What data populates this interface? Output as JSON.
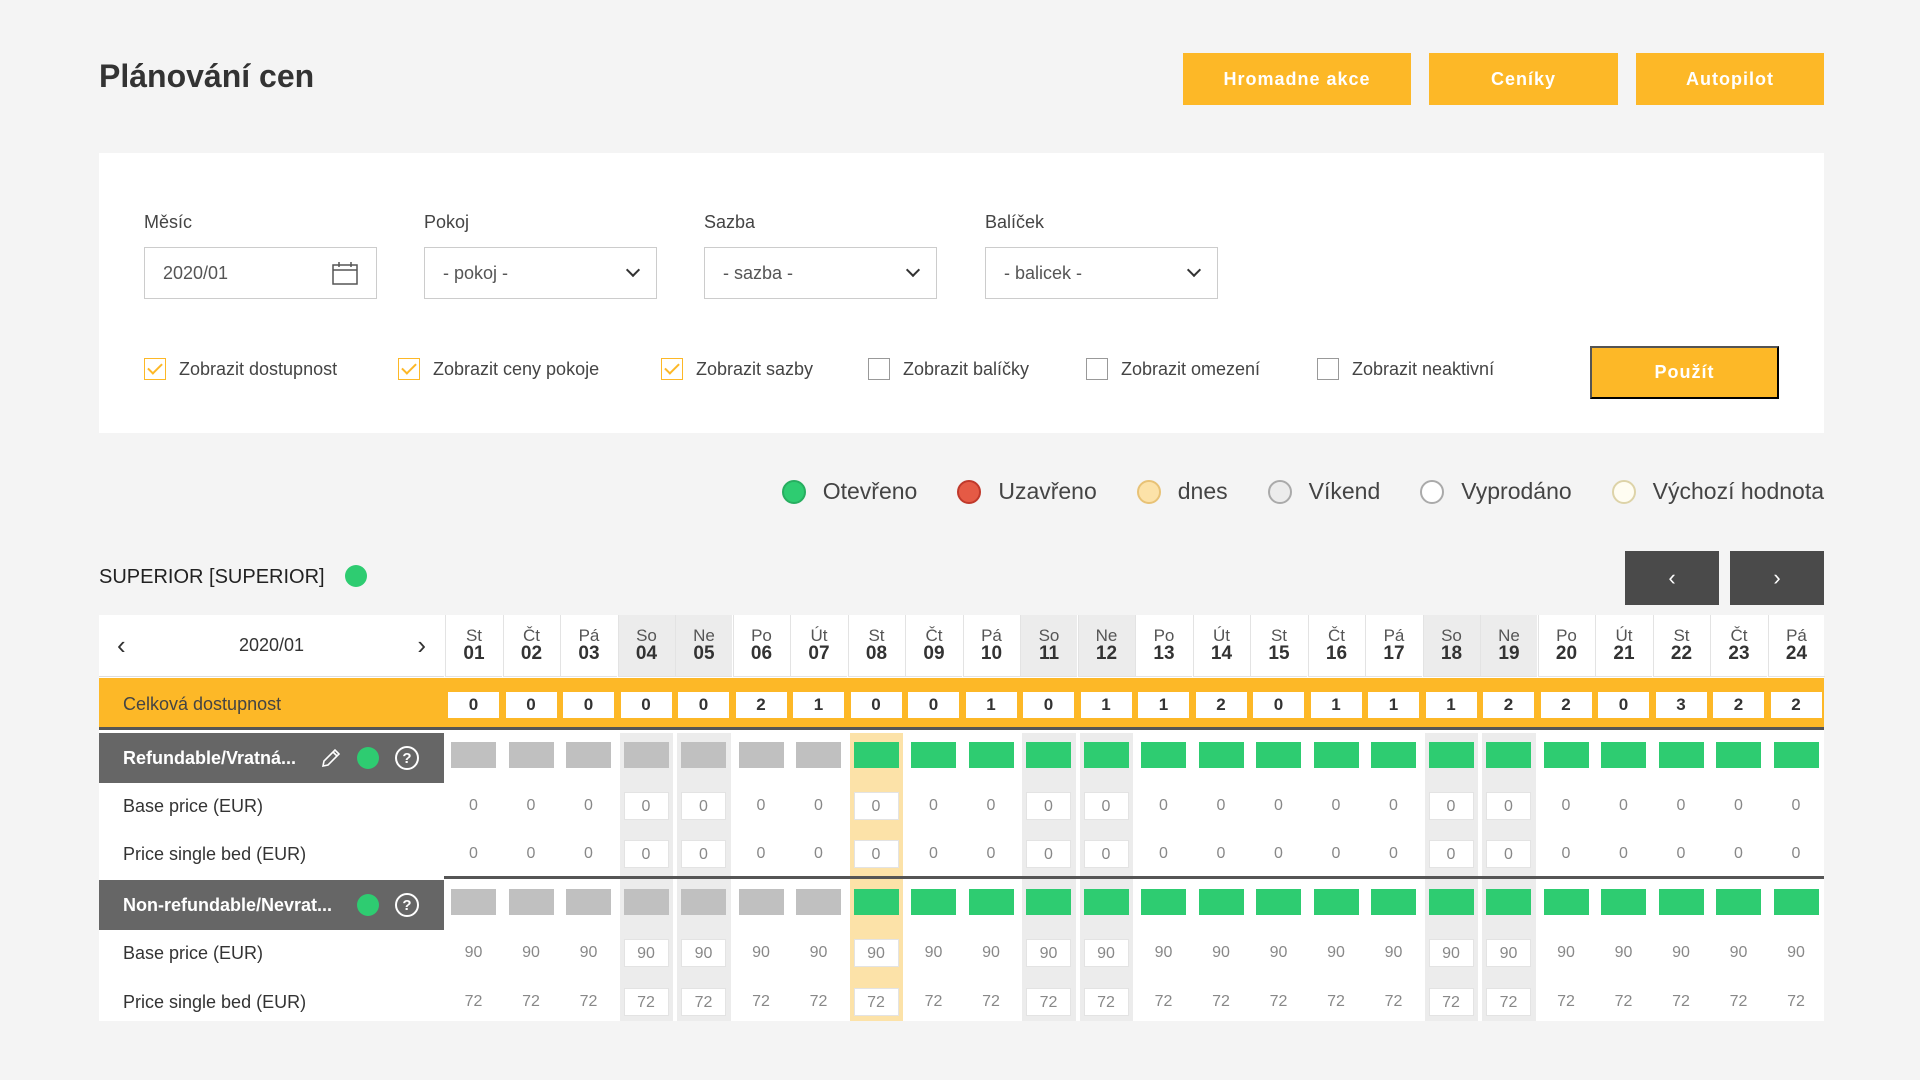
{
  "page": {
    "title": "Plánování cen"
  },
  "top_buttons": [
    "Hromadne akce",
    "Ceníky",
    "Autopilot"
  ],
  "filters": {
    "month": {
      "label": "Měsíc",
      "value": "2020/01"
    },
    "room": {
      "label": "Pokoj",
      "value": "- pokoj -"
    },
    "rate": {
      "label": "Sazba",
      "value": "- sazba -"
    },
    "package": {
      "label": "Balíček",
      "value": "- balicek -"
    },
    "checkboxes": [
      {
        "label": "Zobrazit dostupnost",
        "checked": true
      },
      {
        "label": "Zobrazit ceny pokoje",
        "checked": true
      },
      {
        "label": "Zobrazit sazby",
        "checked": true
      },
      {
        "label": "Zobrazit balíčky",
        "checked": false
      },
      {
        "label": "Zobrazit omezení",
        "checked": false
      },
      {
        "label": "Zobrazit neaktivní",
        "checked": false
      }
    ],
    "apply_label": "Použít"
  },
  "legend": [
    {
      "label": "Otevřeno",
      "color": "#2ecc71"
    },
    {
      "label": "Uzavřeno",
      "color": "#e55a45"
    },
    {
      "label": "dnes",
      "color": "#fce2a8"
    },
    {
      "label": "Víkend",
      "color": "#ececec"
    },
    {
      "label": "Vyprodáno",
      "color": "#ffffff"
    },
    {
      "label": "Výchozí hodnota",
      "color": "#fffdf2"
    }
  ],
  "room": {
    "title": "SUPERIOR [SUPERIOR]",
    "prev": "‹",
    "next": "›"
  },
  "grid": {
    "month": "2020/01",
    "days": [
      {
        "d": "St",
        "n": "01"
      },
      {
        "d": "Čt",
        "n": "02"
      },
      {
        "d": "Pá",
        "n": "03"
      },
      {
        "d": "So",
        "n": "04"
      },
      {
        "d": "Ne",
        "n": "05"
      },
      {
        "d": "Po",
        "n": "06"
      },
      {
        "d": "Út",
        "n": "07"
      },
      {
        "d": "St",
        "n": "08"
      },
      {
        "d": "Čt",
        "n": "09"
      },
      {
        "d": "Pá",
        "n": "10"
      },
      {
        "d": "So",
        "n": "11"
      },
      {
        "d": "Ne",
        "n": "12"
      },
      {
        "d": "Po",
        "n": "13"
      },
      {
        "d": "Út",
        "n": "14"
      },
      {
        "d": "St",
        "n": "15"
      },
      {
        "d": "Čt",
        "n": "16"
      },
      {
        "d": "Pá",
        "n": "17"
      },
      {
        "d": "So",
        "n": "18"
      },
      {
        "d": "Ne",
        "n": "19"
      },
      {
        "d": "Po",
        "n": "20"
      },
      {
        "d": "Út",
        "n": "21"
      },
      {
        "d": "St",
        "n": "22"
      },
      {
        "d": "Čt",
        "n": "23"
      },
      {
        "d": "Pá",
        "n": "24"
      }
    ],
    "availability_label": "Celková dostupnost",
    "availability": [
      "0",
      "0",
      "0",
      "0",
      "0",
      "2",
      "1",
      "0",
      "0",
      "1",
      "0",
      "1",
      "1",
      "2",
      "0",
      "1",
      "1",
      "1",
      "2",
      "2",
      "0",
      "3",
      "2",
      "2"
    ],
    "rates": [
      {
        "name": "Refundable/Vratná...",
        "rows": [
          {
            "label": "Base price (EUR)",
            "values": [
              "0",
              "0",
              "0",
              "0",
              "0",
              "0",
              "0",
              "0",
              "0",
              "0",
              "0",
              "0",
              "0",
              "0",
              "0",
              "0",
              "0",
              "0",
              "0",
              "0",
              "0",
              "0",
              "0",
              "0"
            ]
          },
          {
            "label": "Price single bed (EUR)",
            "values": [
              "0",
              "0",
              "0",
              "0",
              "0",
              "0",
              "0",
              "0",
              "0",
              "0",
              "0",
              "0",
              "0",
              "0",
              "0",
              "0",
              "0",
              "0",
              "0",
              "0",
              "0",
              "0",
              "0",
              "0"
            ]
          }
        ]
      },
      {
        "name": "Non-refundable/Nevrat...",
        "rows": [
          {
            "label": "Base price (EUR)",
            "values": [
              "90",
              "90",
              "90",
              "90",
              "90",
              "90",
              "90",
              "90",
              "90",
              "90",
              "90",
              "90",
              "90",
              "90",
              "90",
              "90",
              "90",
              "90",
              "90",
              "90",
              "90",
              "90",
              "90",
              "90"
            ]
          },
          {
            "label": "Price single bed (EUR)",
            "values": [
              "72",
              "72",
              "72",
              "72",
              "72",
              "72",
              "72",
              "72",
              "72",
              "72",
              "72",
              "72",
              "72",
              "72",
              "72",
              "72",
              "72",
              "72",
              "72",
              "72",
              "72",
              "72",
              "72",
              "72"
            ]
          }
        ]
      }
    ],
    "closed_until_index": 6,
    "today_index": 7,
    "weekend_indices": [
      3,
      4,
      10,
      11,
      17,
      18
    ],
    "help_icon": "?"
  }
}
